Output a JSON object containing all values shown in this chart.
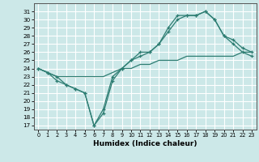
{
  "title": "",
  "xlabel": "Humidex (Indice chaleur)",
  "bg_color": "#cce8e8",
  "grid_color": "#ffffff",
  "line_color": "#2d7d72",
  "xlim": [
    -0.5,
    23.5
  ],
  "ylim": [
    16.5,
    32
  ],
  "yticks": [
    17,
    18,
    19,
    20,
    21,
    22,
    23,
    24,
    25,
    26,
    27,
    28,
    29,
    30,
    31
  ],
  "xticks": [
    0,
    1,
    2,
    3,
    4,
    5,
    6,
    7,
    8,
    9,
    10,
    11,
    12,
    13,
    14,
    15,
    16,
    17,
    18,
    19,
    20,
    21,
    22,
    23
  ],
  "line1_x": [
    0,
    1,
    2,
    3,
    4,
    5,
    6,
    7,
    8,
    9,
    10,
    11,
    12,
    13,
    14,
    15,
    16,
    17,
    18,
    19,
    20,
    21,
    22,
    23
  ],
  "line1_y": [
    24,
    23.5,
    23,
    22,
    21.5,
    21,
    17,
    19,
    23,
    24,
    25,
    26,
    26,
    27,
    29,
    30.5,
    30.5,
    30.5,
    31,
    30,
    28,
    27.5,
    26.5,
    26
  ],
  "line2_x": [
    0,
    1,
    2,
    3,
    4,
    5,
    6,
    7,
    8,
    9,
    10,
    11,
    12,
    13,
    14,
    15,
    16,
    17,
    18,
    19,
    20,
    21,
    22,
    23
  ],
  "line2_y": [
    24,
    23.5,
    22.5,
    22,
    21.5,
    21,
    17,
    18.5,
    22.5,
    24,
    25,
    25.5,
    26,
    27,
    28.5,
    30,
    30.5,
    30.5,
    31,
    30,
    28,
    27,
    26,
    25.5
  ],
  "line3_x": [
    0,
    1,
    2,
    3,
    4,
    5,
    6,
    7,
    8,
    9,
    10,
    11,
    12,
    13,
    14,
    15,
    16,
    17,
    18,
    19,
    20,
    21,
    22,
    23
  ],
  "line3_y": [
    24,
    23.5,
    23,
    23,
    23,
    23,
    23,
    23,
    23.5,
    24,
    24,
    24.5,
    24.5,
    25,
    25,
    25,
    25.5,
    25.5,
    25.5,
    25.5,
    25.5,
    25.5,
    26,
    26
  ]
}
